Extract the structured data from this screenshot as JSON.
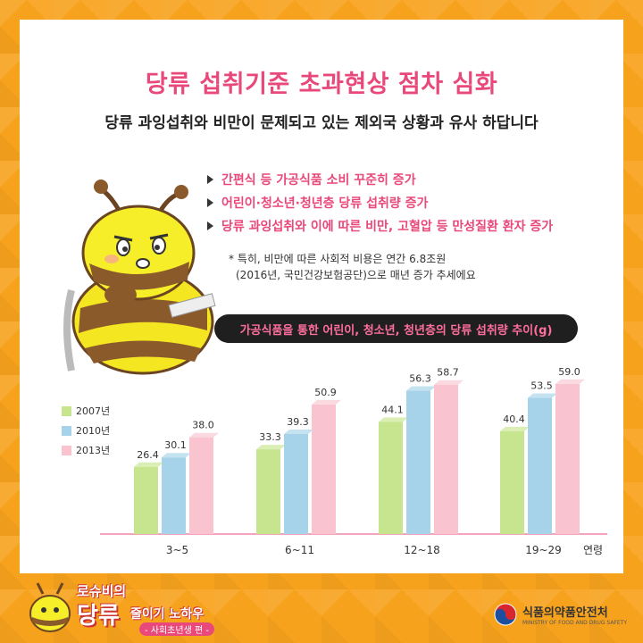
{
  "title": "당류 섭취기준 초과현상 점차 심화",
  "subtitle": "당류 과잉섭취와 비만이 문제되고 있는 제외국 상황과 유사 하답니다",
  "bullets": [
    "간편식 등 가공식품 소비 꾸준히 증가",
    "어린이·청소년·청년층 당류 섭취량 증가",
    "당류 과잉섭취와 이에 따른 비만, 고혈압 등 만성질환 환자 증가"
  ],
  "note": {
    "line1": "* 특히, 비만에 따른 사회적 비용은 연간 6.8조원",
    "line2": "(2016년, 국민건강보험공단)으로 매년 증가 추세에요"
  },
  "banner": "가공식품을 통한 어린이, 청소년, 청년층의 당류 섭취량 추이(g)",
  "chart_data": {
    "type": "bar",
    "title": "가공식품을 통한 어린이, 청소년, 청년층의 당류 섭취량 추이(g)",
    "categories": [
      "3~5",
      "6~11",
      "12~18",
      "19~29"
    ],
    "xlabel": "연령",
    "series": [
      {
        "name": "2007년",
        "values": [
          26.4,
          33.3,
          44.1,
          40.4
        ],
        "color": "#c6e58e"
      },
      {
        "name": "2010년",
        "values": [
          30.1,
          39.3,
          56.3,
          53.5
        ],
        "color": "#a6d3ea"
      },
      {
        "name": "2013년",
        "values": [
          38.0,
          50.9,
          58.7,
          59.0
        ],
        "color": "#f9c4cf"
      }
    ],
    "value_labels": [
      [
        "26.4",
        "30.1",
        "38.0"
      ],
      [
        "33.3",
        "39.3",
        "50.9"
      ],
      [
        "44.1",
        "56.3",
        "58.7"
      ],
      [
        "40.4",
        "53.5",
        "59.0"
      ]
    ],
    "ylim": [
      0,
      62
    ],
    "legend": "left",
    "grid": false
  },
  "footer": {
    "logo_line1": "로슈비의",
    "logo_line2": "당류",
    "logo_line3": "줄이기 노하우",
    "logo_line4": "- 사회초년생 편 -",
    "ministry_ko": "식품의약품안전처",
    "ministry_en": "MINISTRY OF FOOD AND DRUG SAFETY"
  },
  "colors": {
    "background": "#f7a21c",
    "accent_pink": "#e8497a",
    "banner_bg": "#1f1f1f",
    "axis": "#e8497a"
  }
}
